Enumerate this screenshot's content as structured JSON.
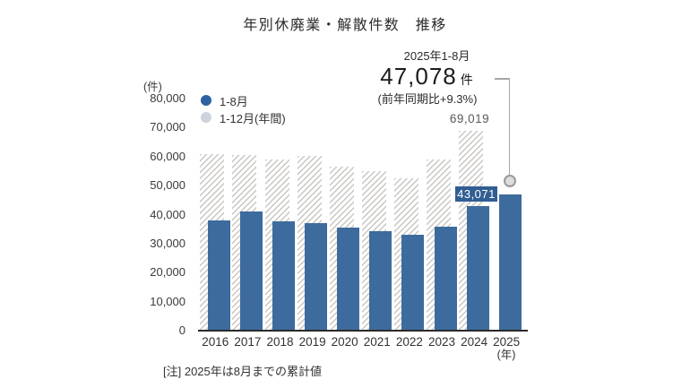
{
  "title": "年別休廃業・解散件数　推移",
  "y_axis_unit": "(件)",
  "x_axis_unit": "(年)",
  "legend": {
    "jan_aug": "1-8月",
    "full_year": "1-12月(年間)"
  },
  "annotation": {
    "line1": "2025年1-8月",
    "value": "47,078",
    "unit": "件",
    "line3": "(前年同期比+9.3%)"
  },
  "data_labels": {
    "full_2024": "69,019",
    "jan_aug_2024": "43,071"
  },
  "note": "[注]  2025年は8月までの累計値",
  "colors": {
    "bar_blue": "#3d6b9d",
    "chip_blue": "#315e93",
    "legend_dot_blue": "#2e62a1",
    "legend_dot_gray": "#ccd3db",
    "hatch_gray": "#c9c6c3",
    "axis": "#2a2a2a"
  },
  "chart_data": {
    "type": "bar",
    "title": "年別休廃業・解散件数　推移",
    "categories": [
      "2016",
      "2017",
      "2018",
      "2019",
      "2020",
      "2021",
      "2022",
      "2023",
      "2024",
      "2025"
    ],
    "series": [
      {
        "name": "1-8月",
        "values": [
          37900,
          41100,
          37600,
          37200,
          35600,
          34200,
          33200,
          35900,
          43071,
          47078
        ]
      },
      {
        "name": "1-12月(年間)",
        "values": [
          61000,
          60600,
          58900,
          60300,
          56600,
          55100,
          52400,
          59100,
          69019,
          null
        ]
      }
    ],
    "ylabel": "(件)",
    "xlabel": "(年)",
    "ylim": [
      0,
      80000
    ],
    "y_ticks": [
      0,
      10000,
      20000,
      30000,
      40000,
      50000,
      60000,
      70000,
      80000
    ],
    "grid": false,
    "legend_position": "upper-left",
    "annotations": {
      "full_2024_label": 69019,
      "jan_aug_2024_label": 43071,
      "callout_2025": "2025年1-8月 47,078件 (前年同期比+9.3%)"
    }
  }
}
